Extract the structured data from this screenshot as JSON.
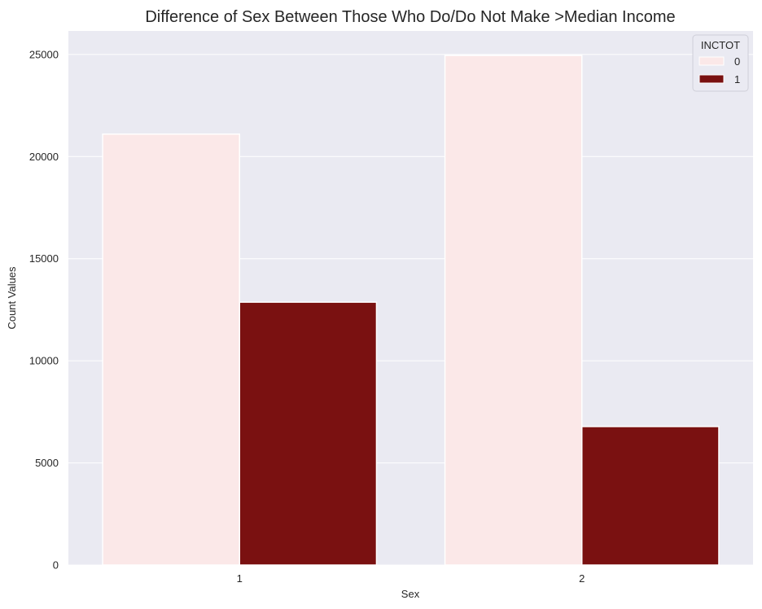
{
  "chart_data": {
    "type": "bar",
    "title": "Difference of Sex Between Those Who Do/Do Not Make >Median Income",
    "xlabel": "Sex",
    "ylabel": "Count Values",
    "categories": [
      "1",
      "2"
    ],
    "series": [
      {
        "name": "0",
        "values": [
          21100,
          24950
        ],
        "color": "#fbe8e8"
      },
      {
        "name": "1",
        "values": [
          12870,
          6780
        ],
        "color": "#7a1111"
      }
    ],
    "ylim": [
      0,
      26150
    ],
    "yticks": [
      0,
      5000,
      10000,
      15000,
      20000,
      25000
    ],
    "grid": true,
    "legend": {
      "title": "INCTOT",
      "position": "top-right"
    },
    "background_color": "#eaeaf2"
  }
}
